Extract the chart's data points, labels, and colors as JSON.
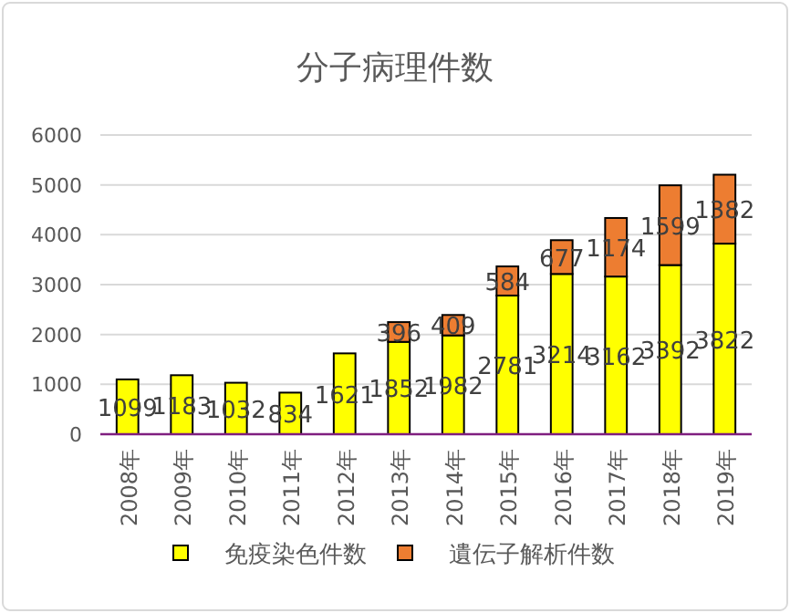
{
  "chart_data": {
    "type": "bar",
    "title": "分子病理件数",
    "stacked": true,
    "categories": [
      "2008年",
      "2009年",
      "2010年",
      "2011年",
      "2012年",
      "2013年",
      "2014年",
      "2015年",
      "2016年",
      "2017年",
      "2018年",
      "2019年"
    ],
    "series": [
      {
        "name": "免疫染色件数",
        "color": "#ffff00",
        "values": [
          1099,
          1183,
          1032,
          834,
          1621,
          1852,
          1982,
          2781,
          3214,
          3162,
          3392,
          3822
        ]
      },
      {
        "name": "遺伝子解析件数",
        "color": "#ed7d31",
        "values": [
          null,
          null,
          null,
          null,
          null,
          396,
          409,
          584,
          677,
          1174,
          1599,
          1382
        ]
      }
    ],
    "ylim": [
      0,
      6000
    ],
    "yticks": [
      0,
      1000,
      2000,
      3000,
      4000,
      5000,
      6000
    ],
    "grid": "y",
    "legend": "bottom",
    "data_labels": true
  }
}
